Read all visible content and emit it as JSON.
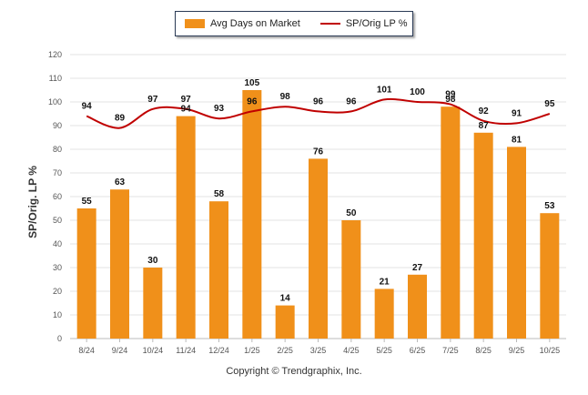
{
  "chart_data": {
    "type": "bar+line",
    "title": "",
    "xlabel": "",
    "ylabel": "SP/Orig. LP %",
    "ylim": [
      0,
      120
    ],
    "yticks": [
      0,
      10,
      20,
      30,
      40,
      50,
      60,
      70,
      80,
      90,
      100,
      110,
      120
    ],
    "categories": [
      "8/24",
      "9/24",
      "10/24",
      "11/24",
      "12/24",
      "1/25",
      "2/25",
      "3/25",
      "4/25",
      "5/25",
      "6/25",
      "7/25",
      "8/25",
      "9/25",
      "10/25"
    ],
    "series": [
      {
        "name": "Avg Days on Market",
        "kind": "bar",
        "color": "#f0901a",
        "values": [
          55,
          63,
          30,
          94,
          58,
          105,
          14,
          76,
          50,
          21,
          27,
          98,
          87,
          81,
          53
        ]
      },
      {
        "name": "SP/Orig LP %",
        "kind": "line",
        "color": "#c00000",
        "values": [
          94,
          89,
          97,
          97,
          93,
          96,
          98,
          96,
          96,
          101,
          100,
          99,
          92,
          91,
          95
        ]
      }
    ],
    "legend_position": "top-center"
  },
  "legend": {
    "bar_label": "Avg Days on Market",
    "line_label": "SP/Orig LP %"
  },
  "footer": {
    "copyright": "Copyright © Trendgraphix, Inc."
  }
}
